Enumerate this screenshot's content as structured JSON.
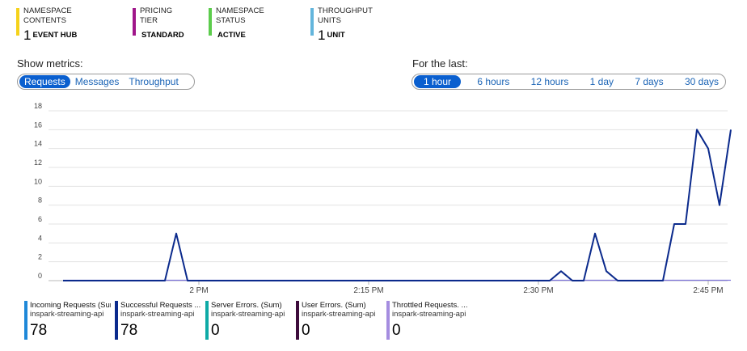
{
  "tiles": [
    {
      "label": "NAMESPACE CONTENTS",
      "value": "1",
      "unit": "EVENT HUB",
      "color": "#f5d21b"
    },
    {
      "label": "PRICING TIER",
      "value": "",
      "unit": "STANDARD",
      "color": "#a0168a"
    },
    {
      "label": "NAMESPACE STATUS",
      "value": "",
      "unit": "ACTIVE",
      "color": "#5ccc4c"
    },
    {
      "label": "THROUGHPUT UNITS",
      "value": "1",
      "unit": "UNIT",
      "color": "#63b5dc"
    }
  ],
  "metrics": {
    "label": "Show metrics:",
    "options": [
      "Requests",
      "Messages",
      "Throughput"
    ],
    "selected": "Requests"
  },
  "timerange": {
    "label": "For the last:",
    "options": [
      "1 hour",
      "6 hours",
      "12 hours",
      "1 day",
      "7 days",
      "30 days"
    ],
    "selected": "1 hour"
  },
  "chart_data": {
    "type": "line",
    "y_ticks": [
      "0",
      "2",
      "4",
      "6",
      "8",
      "10",
      "12",
      "14",
      "16",
      "18"
    ],
    "ylim": [
      0,
      18
    ],
    "x_ticks": [
      "2 PM",
      "2:15 PM",
      "2:30 PM",
      "2:45 PM"
    ],
    "x_tick_minutes": [
      0,
      15,
      30,
      45
    ],
    "xlim_minutes": [
      -12,
      48
    ],
    "grid": true,
    "series": [
      {
        "color": "#0b2a8c",
        "x": [
          -12,
          -3,
          -2,
          -1,
          31,
          32,
          33,
          34,
          35,
          36,
          37,
          38,
          39,
          40,
          41,
          42,
          43,
          44,
          45,
          46,
          47
        ],
        "values": [
          0,
          0,
          5,
          0,
          0,
          1,
          0,
          0,
          5,
          1,
          0,
          0,
          0,
          0,
          0,
          6,
          6,
          16,
          14,
          8,
          16
        ]
      }
    ]
  },
  "legend": [
    {
      "label": "Incoming Requests (Sum)",
      "sub": "inspark-streaming-api",
      "value": "78",
      "color": "#1e88d8"
    },
    {
      "label": "Successful Requests ...",
      "sub": "inspark-streaming-api",
      "value": "78",
      "color": "#0b2a8c"
    },
    {
      "label": "Server Errors. (Sum)",
      "sub": "inspark-streaming-api",
      "value": "0",
      "color": "#0eaaa6"
    },
    {
      "label": "User Errors. (Sum)",
      "sub": "inspark-streaming-api",
      "value": "0",
      "color": "#3d0b3b"
    },
    {
      "label": "Throttled Requests. ...",
      "sub": "inspark-streaming-api",
      "value": "0",
      "color": "#a58de0"
    }
  ]
}
